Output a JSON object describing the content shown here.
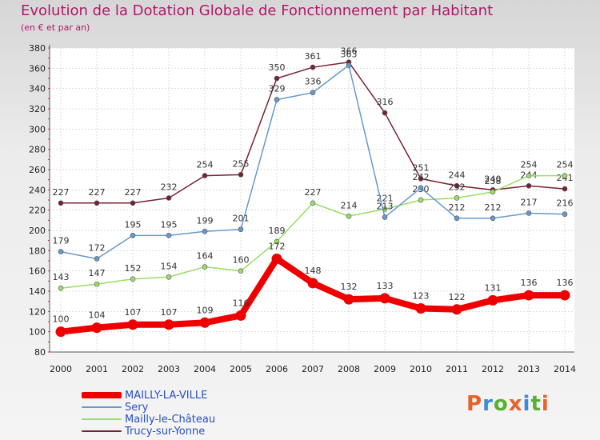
{
  "header": {
    "title": "Evolution de la Dotation Globale de Fonctionnement par Habitant",
    "subtitle": "(en € et par an)"
  },
  "logo": {
    "text": "Proxiti",
    "letter_colors": [
      "#e8612a",
      "#3c8ad8",
      "#58b030",
      "#e8612a",
      "#3c8ad8",
      "#58b030",
      "#e8612a"
    ]
  },
  "chart_data": {
    "type": "line",
    "title": "Evolution de la Dotation Globale de Fonctionnement par Habitant",
    "subtitle": "(en € et par an)",
    "xlabel": "",
    "ylabel": "",
    "ylim": [
      80,
      380
    ],
    "ytick_step": 20,
    "yticks": [
      80,
      100,
      120,
      140,
      160,
      180,
      200,
      220,
      240,
      260,
      280,
      300,
      320,
      340,
      360,
      380
    ],
    "grid": true,
    "legend_position": "bottom-left",
    "categories": [
      "2000",
      "2001",
      "2002",
      "2003",
      "2004",
      "2005",
      "2006",
      "2007",
      "2008",
      "2009",
      "2010",
      "2011",
      "2012",
      "2013",
      "2014"
    ],
    "series": [
      {
        "name": "MAILLY-LA-VILLE",
        "color": "#ee0000",
        "emphasis": true,
        "values": [
          100,
          104,
          107,
          107,
          109,
          116,
          172,
          148,
          132,
          133,
          123,
          122,
          131,
          136,
          136
        ]
      },
      {
        "name": "Sery",
        "color": "#6699cc",
        "values": [
          179,
          172,
          195,
          195,
          199,
          201,
          329,
          336,
          363,
          213,
          242,
          212,
          212,
          217,
          216
        ]
      },
      {
        "name": "Mailly-le-Château",
        "color": "#99dd66",
        "values": [
          143,
          147,
          152,
          154,
          164,
          160,
          189,
          227,
          214,
          221,
          230,
          232,
          238,
          254,
          254
        ]
      },
      {
        "name": "Trucy-sur-Yonne",
        "color": "#772233",
        "values": [
          227,
          227,
          227,
          232,
          254,
          255,
          350,
          361,
          366,
          316,
          251,
          244,
          240,
          244,
          241
        ]
      }
    ]
  }
}
